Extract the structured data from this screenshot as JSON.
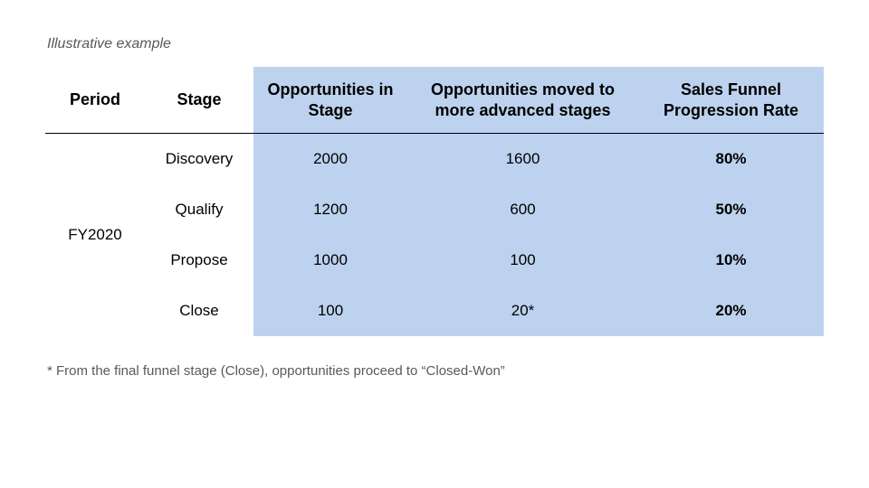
{
  "caption": "Illustrative example",
  "footnote": "* From the final funnel stage (Close), opportunities proceed to “Closed-Won”",
  "table": {
    "type": "table",
    "background_color": "#ffffff",
    "shaded_background": "#bdd2ee",
    "text_color": "#000000",
    "caption_color": "#595959",
    "footnote_color": "#595959",
    "header_fontsize": 18,
    "body_fontsize": 17,
    "caption_fontsize": 16,
    "footnote_fontsize": 15,
    "divider_color": "#000000",
    "columns": {
      "period": "Period",
      "stage": "Stage",
      "opp_in_stage": "Opportunities in Stage",
      "opp_moved": "Opportunities moved to more advanced stages",
      "rate": "Sales Funnel Progression Rate"
    },
    "period_label": "FY2020",
    "rows": [
      {
        "stage": "Discovery",
        "opp_in_stage": "2000",
        "opp_moved": "1600",
        "rate": "80%"
      },
      {
        "stage": "Qualify",
        "opp_in_stage": "1200",
        "opp_moved": "600",
        "rate": "50%"
      },
      {
        "stage": "Propose",
        "opp_in_stage": "1000",
        "opp_moved": "100",
        "rate": "10%"
      },
      {
        "stage": "Close",
        "opp_in_stage": "100",
        "opp_moved": "20*",
        "rate": "20%"
      }
    ]
  }
}
